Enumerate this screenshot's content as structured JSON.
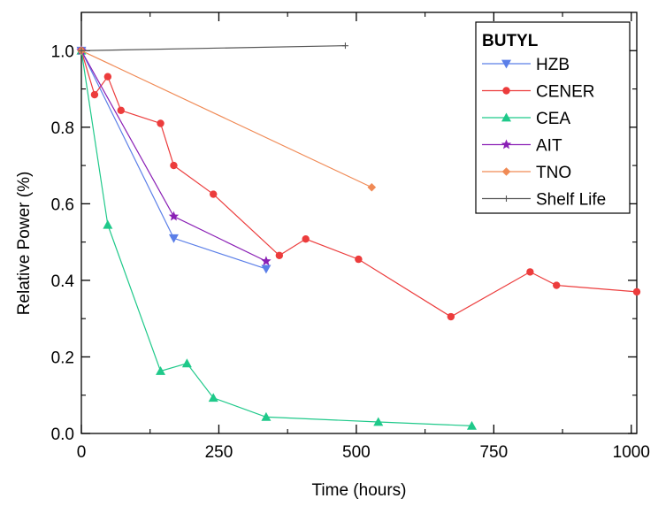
{
  "chart_data": {
    "type": "line",
    "xlabel": "Time (hours)",
    "ylabel": "Relative Power (%)",
    "xlim": [
      0,
      1010
    ],
    "ylim": [
      0,
      1.1
    ],
    "xticks": [
      0,
      250,
      500,
      750,
      1000
    ],
    "xtick_labels": [
      "0",
      "250",
      "500",
      "750",
      "1000"
    ],
    "yticks": [
      0.0,
      0.2,
      0.4,
      0.6,
      0.8,
      1.0
    ],
    "ytick_labels": [
      "0.0",
      "0.2",
      "0.4",
      "0.6",
      "0.8",
      "1.0"
    ],
    "grid": false,
    "legend": {
      "title": "BUTYL",
      "position": "top-right"
    },
    "series": [
      {
        "name": "HZB",
        "color": "#5b7fe8",
        "marker": "triangle-down",
        "x": [
          0,
          168,
          336
        ],
        "y": [
          1.0,
          0.51,
          0.43
        ]
      },
      {
        "name": "CENER",
        "color": "#ec3c3c",
        "marker": "circle",
        "x": [
          0,
          24,
          48,
          72,
          144,
          168,
          240,
          360,
          408,
          504,
          672,
          816,
          864,
          1010
        ],
        "y": [
          1.0,
          0.885,
          0.932,
          0.844,
          0.81,
          0.7,
          0.625,
          0.465,
          0.508,
          0.455,
          0.305,
          0.422,
          0.387,
          0.37
        ]
      },
      {
        "name": "CEA",
        "color": "#1fc98a",
        "marker": "triangle-up",
        "x": [
          0,
          48,
          144,
          192,
          240,
          336,
          540,
          710
        ],
        "y": [
          1.0,
          0.545,
          0.163,
          0.183,
          0.093,
          0.043,
          0.03,
          0.02
        ]
      },
      {
        "name": "AIT",
        "color": "#8a1fb5",
        "marker": "star",
        "x": [
          0,
          168,
          336
        ],
        "y": [
          1.0,
          0.567,
          0.45
        ]
      },
      {
        "name": "TNO",
        "color": "#f08a55",
        "marker": "diamond",
        "x": [
          0,
          528
        ],
        "y": [
          1.0,
          0.643
        ]
      },
      {
        "name": "Shelf Life",
        "color": "#555555",
        "marker": "plus",
        "x": [
          0,
          480
        ],
        "y": [
          1.0,
          1.013
        ]
      }
    ]
  }
}
